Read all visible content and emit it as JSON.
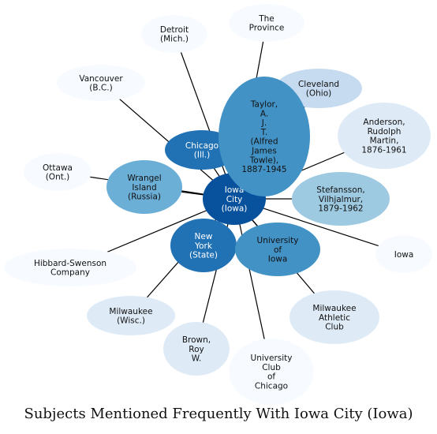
{
  "title": "Subjects Mentioned Frequently With Iowa City (Iowa)",
  "center_node": "iowa-city",
  "palette": {
    "darkest": "#08519c",
    "dark": "#2171b5",
    "mid": "#4292c6",
    "medium": "#6baed6",
    "light": "#9ecae1",
    "pale": "#c6dbef",
    "very_pale": "#deebf7",
    "faint": "#f7fbff",
    "line": "#000000"
  },
  "nodes": [
    {
      "id": "the-province",
      "label": [
        "The",
        "Province"
      ],
      "shade": "faint"
    },
    {
      "id": "detroit",
      "label": [
        "Detroit",
        "(Mich.)"
      ],
      "shade": "faint"
    },
    {
      "id": "cleveland",
      "label": [
        "Cleveland",
        "(Ohio)"
      ],
      "shade": "pale"
    },
    {
      "id": "vancouver",
      "label": [
        "Vancouver",
        "(B.C.)"
      ],
      "shade": "faint"
    },
    {
      "id": "anderson",
      "label": [
        "Anderson,",
        "Rudolph",
        "Martin,",
        "1876-1961"
      ],
      "shade": "very_pale"
    },
    {
      "id": "chicago",
      "label": [
        "Chicago",
        "(Ill.)"
      ],
      "shade": "dark"
    },
    {
      "id": "ottawa",
      "label": [
        "Ottawa",
        "(Ont.)"
      ],
      "shade": "faint"
    },
    {
      "id": "wrangel-island",
      "label": [
        "Wrangel",
        "Island",
        "(Russia)"
      ],
      "shade": "medium"
    },
    {
      "id": "stefansson",
      "label": [
        "Stefansson,",
        "Vilhjalmur,",
        "1879-1962"
      ],
      "shade": "light"
    },
    {
      "id": "iowa",
      "label": [
        "Iowa"
      ],
      "shade": "faint"
    },
    {
      "id": "hibbard-swenson",
      "label": [
        "Hibbard-Swenson",
        "Company"
      ],
      "shade": "faint"
    },
    {
      "id": "new-york-state",
      "label": [
        "New",
        "York",
        "(State)"
      ],
      "shade": "dark"
    },
    {
      "id": "university-of-iowa",
      "label": [
        "University",
        "of",
        "Iowa"
      ],
      "shade": "mid"
    },
    {
      "id": "milwaukee",
      "label": [
        "Milwaukee",
        "(Wisc.)"
      ],
      "shade": "very_pale"
    },
    {
      "id": "milwaukee-athletic-club",
      "label": [
        "Milwaukee",
        "Athletic",
        "Club"
      ],
      "shade": "very_pale"
    },
    {
      "id": "brown-roy",
      "label": [
        "Brown,",
        "Roy",
        "W."
      ],
      "shade": "very_pale"
    },
    {
      "id": "university-club-chicago",
      "label": [
        "University",
        "Club",
        "of",
        "Chicago"
      ],
      "shade": "faint"
    },
    {
      "id": "iowa-city",
      "label": [
        "Iowa",
        "City",
        "(Iowa)"
      ],
      "shade": "darkest"
    },
    {
      "id": "towle",
      "label": [
        "Taylor,",
        "A.",
        "J.",
        "T.",
        "(Alfred",
        "James",
        "Towle),",
        "1887-1945"
      ],
      "shade": "mid"
    }
  ],
  "edges": [
    {
      "from": "iowa-city",
      "to": "the-province"
    },
    {
      "from": "iowa-city",
      "to": "detroit"
    },
    {
      "from": "iowa-city",
      "to": "vancouver"
    },
    {
      "from": "iowa-city",
      "to": "ottawa"
    },
    {
      "from": "iowa-city",
      "to": "wrangel-island"
    },
    {
      "from": "iowa-city",
      "to": "hibbard-swenson"
    },
    {
      "from": "iowa-city",
      "to": "milwaukee"
    },
    {
      "from": "iowa-city",
      "to": "brown-roy"
    },
    {
      "from": "iowa-city",
      "to": "university-club-chicago"
    },
    {
      "from": "iowa-city",
      "to": "milwaukee-athletic-club"
    },
    {
      "from": "iowa-city",
      "to": "iowa"
    },
    {
      "from": "iowa-city",
      "to": "stefansson"
    },
    {
      "from": "iowa-city",
      "to": "anderson"
    },
    {
      "from": "iowa-city",
      "to": "cleveland"
    },
    {
      "from": "iowa-city",
      "to": "chicago"
    },
    {
      "from": "iowa-city",
      "to": "new-york-state"
    },
    {
      "from": "iowa-city",
      "to": "university-of-iowa"
    },
    {
      "from": "iowa-city",
      "to": "towle"
    }
  ]
}
